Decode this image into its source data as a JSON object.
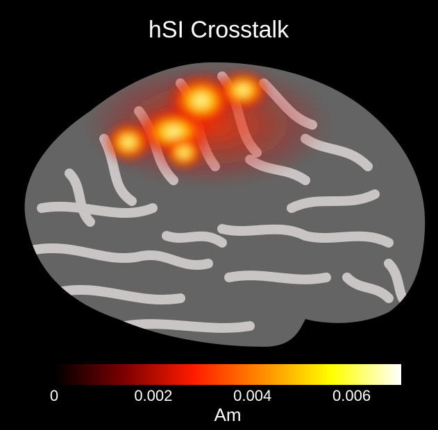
{
  "title": "hSI Crosstalk",
  "colorbar": {
    "label": "Am",
    "lim": [
      0,
      0.007
    ],
    "ticks": [
      0,
      0.002,
      0.004,
      0.006
    ],
    "colors": [
      "#000000",
      "#7a0000",
      "#ff1a00",
      "#ff8c00",
      "#ffff00",
      "#ffffff"
    ]
  }
}
